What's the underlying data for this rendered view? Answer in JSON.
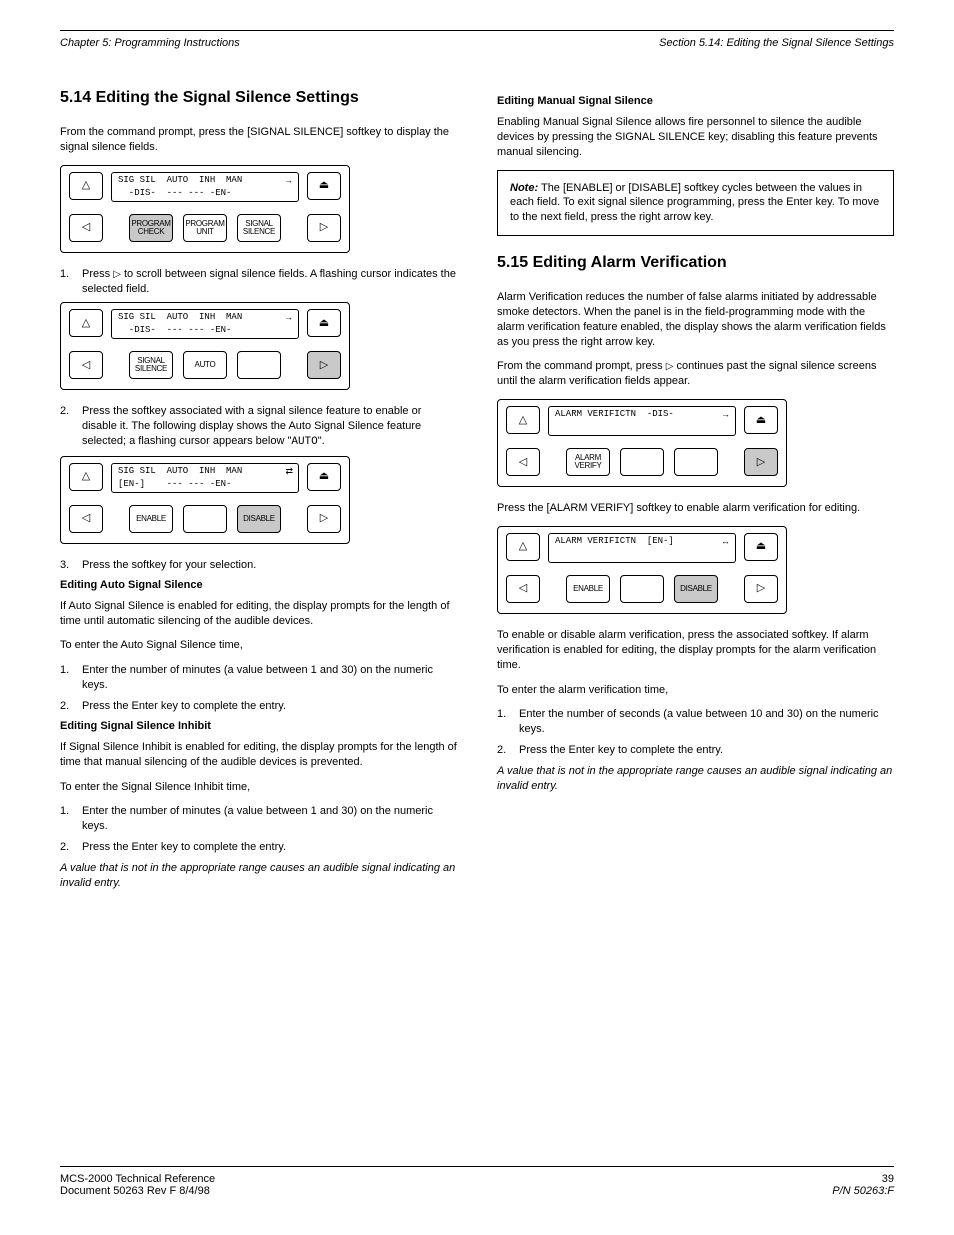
{
  "header": {
    "chapter": "Chapter 5: Programming Instructions",
    "section_ref": "Section 5.14: Editing the Signal Silence Settings"
  },
  "left": {
    "title": "5.14 Editing the Signal Silence Settings",
    "intro": "From the command prompt, press the [SIGNAL SILENCE] softkey to display the signal silence fields.",
    "panel1": {
      "lcd_top": "SIG SIL  AUTO  INH  MAN",
      "lcd_bottom": "  -DIS-  --- --- -EN-",
      "arrow": "→",
      "soft1": "PROGRAM CHECK",
      "soft1_highlight": true,
      "soft2": "PROGRAM UNIT",
      "soft3": "SIGNAL SILENCE"
    },
    "step1_a": "Press",
    "step1_b": "to scroll between signal silence fields. A flashing cursor indicates the selected field.",
    "panel2": {
      "lcd_top": "SIG SIL  AUTO  INH  MAN",
      "lcd_bottom": "  -DIS-  --- --- -EN-",
      "arrow": "→",
      "soft1": "SIGNAL SILENCE",
      "soft2": "AUTO",
      "soft3": "",
      "hl_right": true
    },
    "step2_before": "Press the softkey associated with a signal silence feature to enable or disable it. The following display shows the Auto Signal Silence feature selected; a flashing cursor appears below \"",
    "step2_code": "AUTO",
    "step2_after": "\".",
    "panel3": {
      "lcd_top": "SIG SIL  AUTO  INH  MAN",
      "lcd_bottom": "[EN-]    --- --- -EN-",
      "arrow": "⇄",
      "soft1": "ENABLE",
      "soft2": "",
      "soft3": "DISABLE",
      "soft3_highlight": true
    },
    "step3": "Press the softkey for your selection.",
    "sub_auto_title": "Editing Auto Signal Silence",
    "sub_auto_intro": "If Auto Signal Silence is enabled for editing, the display prompts for the length of time until automatic silencing of the audible devices.",
    "sub_auto_steps_label": "To enter the Auto Signal Silence time,",
    "auto_s1": "Enter the number of minutes (a value between 1 and 30) on the numeric keys.",
    "auto_s2": "Press the Enter key to complete the entry.",
    "sub_inh_title": "Editing Signal Silence Inhibit",
    "sub_inh_intro": "If Signal Silence Inhibit is enabled for editing, the display prompts for the length of time that manual silencing of the audible devices is prevented.",
    "sub_inh_steps_label": "To enter the Signal Silence Inhibit time,",
    "inh_s1": "Enter the number of minutes (a value between 1 and 30) on the numeric keys.",
    "inh_s2": "Press the Enter key to complete the entry.",
    "note1": "A value that is not in the appropriate range causes an audible signal indicating an invalid entry."
  },
  "right": {
    "sub_man_title": "Editing Manual Signal Silence",
    "sub_man_intro": "Enabling Manual Signal Silence allows fire personnel to silence the audible devices by pressing the SIGNAL SILENCE key; disabling this feature prevents manual silencing.",
    "note": {
      "label": "Note:",
      "body": "The [ENABLE] or [DISABLE] softkey cycles between the values in each field. To exit signal silence programming, press the Enter key. To move to the next field, press the right arrow key."
    },
    "alarm_title": "5.15 Editing Alarm Verification",
    "alarm_intro_1": "Alarm Verification reduces the number of false alarms initiated by addressable smoke detectors. When the panel is in the field-programming mode with the alarm verification feature enabled, the display shows the alarm verification fields as you press the right arrow key.",
    "alarm_intro_2_a": "From the command prompt, press",
    "alarm_intro_2_b": "continues past the signal silence screens until the alarm verification fields appear.",
    "panel4": {
      "lcd_top": "ALARM VERIFICTN  -DIS-",
      "lcd_bottom": "",
      "arrow": "→",
      "soft1": "ALARM VERIFY",
      "soft2": "",
      "soft3": "",
      "hl_right": true
    },
    "alarm_step": "Press the [ALARM VERIFY] softkey to enable alarm verification for editing.",
    "panel5": {
      "lcd_top": "ALARM VERIFICTN  [EN-]",
      "lcd_bottom": "",
      "arrow": "↔",
      "soft1": "ENABLE",
      "soft2": "",
      "soft3": "DISABLE",
      "soft3_highlight": true
    },
    "after5": "To enable or disable alarm verification, press the associated softkey. If alarm verification is enabled for editing, the display prompts for the alarm verification time.",
    "enter_label": "To enter the alarm verification time,",
    "av_s1": "Enter the number of seconds (a value between 10 and 30) on the numeric keys.",
    "av_s2": "Press the Enter key to complete the entry.",
    "note2": "A value that is not in the appropriate range causes an audible signal indicating an invalid entry."
  },
  "footer": {
    "doc": "MCS-2000 Technical Reference",
    "rev": "Document 50263 Rev F 8/4/98",
    "page": "39",
    "pn": "P/N 50263:F"
  },
  "glyphs": {
    "tri_up": "△",
    "tri_up_bar": "⏏",
    "tri_left": "◁",
    "tri_right": "▷"
  }
}
